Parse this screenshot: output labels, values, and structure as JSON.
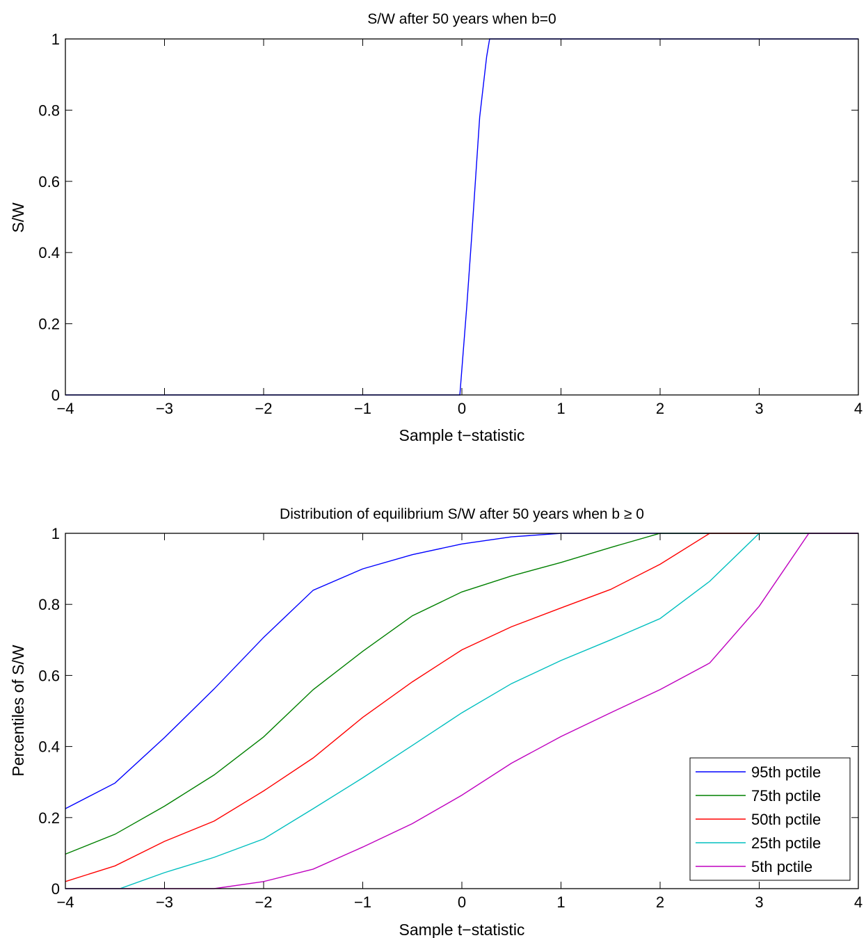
{
  "chart_data": [
    {
      "type": "line",
      "title": "S/W after 50 years when b=0",
      "xlabel": "Sample t−statistic",
      "ylabel": "S/W",
      "xlim": [
        -4,
        4
      ],
      "ylim": [
        0,
        1
      ],
      "xticks": [
        -4,
        -3,
        -2,
        -1,
        0,
        1,
        2,
        3,
        4
      ],
      "xtick_labels": [
        "−4",
        "−3",
        "−2",
        "−1",
        "0",
        "1",
        "2",
        "3",
        "4"
      ],
      "yticks": [
        0,
        0.2,
        0.4,
        0.6,
        0.8,
        1
      ],
      "ytick_labels": [
        "0",
        "0.2",
        "0.4",
        "0.6",
        "0.8",
        "1"
      ],
      "grid": false,
      "legend": null,
      "series": [
        {
          "color": "#0000ff",
          "x": [
            -4,
            -0.02,
            0.05,
            0.1,
            0.18,
            0.25,
            0.28,
            4
          ],
          "y": [
            0,
            0,
            0.25,
            0.45,
            0.78,
            0.95,
            1,
            1
          ]
        }
      ]
    },
    {
      "type": "line",
      "title": "Distribution of equilibrium S/W after 50 years when b ≥ 0",
      "xlabel": "Sample t−statistic",
      "ylabel": "Percentiles of S/W",
      "xlim": [
        -4,
        4
      ],
      "ylim": [
        0,
        1
      ],
      "xticks": [
        -4,
        -3,
        -2,
        -1,
        0,
        1,
        2,
        3,
        4
      ],
      "xtick_labels": [
        "−4",
        "−3",
        "−2",
        "−1",
        "0",
        "1",
        "2",
        "3",
        "4"
      ],
      "yticks": [
        0,
        0.2,
        0.4,
        0.6,
        0.8,
        1
      ],
      "ytick_labels": [
        "0",
        "0.2",
        "0.4",
        "0.6",
        "0.8",
        "1"
      ],
      "grid": false,
      "legend": "bottom-right",
      "series": [
        {
          "name": "95th pctile",
          "color": "#0000ff",
          "x": [
            -4,
            -3.5,
            -3,
            -2.5,
            -2,
            -1.5,
            -1,
            -0.5,
            0,
            0.5,
            1,
            1.5,
            2,
            2.5,
            3,
            3.5,
            4
          ],
          "y": [
            0.225,
            0.297,
            0.425,
            0.562,
            0.707,
            0.84,
            0.9,
            0.94,
            0.97,
            0.99,
            1,
            1,
            1,
            1,
            1,
            1,
            1
          ]
        },
        {
          "name": "75th pctile",
          "color": "#008000",
          "x": [
            -4,
            -3.5,
            -3,
            -2.5,
            -2,
            -1.5,
            -1,
            -0.5,
            0,
            0.5,
            1,
            1.5,
            2,
            2.5,
            3,
            3.5,
            4
          ],
          "y": [
            0.097,
            0.153,
            0.232,
            0.32,
            0.427,
            0.56,
            0.668,
            0.768,
            0.835,
            0.88,
            0.918,
            0.96,
            1,
            1,
            1,
            1,
            1
          ]
        },
        {
          "name": "50th pctile",
          "color": "#ff0000",
          "x": [
            -4,
            -3.5,
            -3,
            -2.5,
            -2,
            -1.5,
            -1,
            -0.5,
            0,
            0.5,
            1,
            1.5,
            2,
            2.5,
            3,
            3.5,
            4
          ],
          "y": [
            0.02,
            0.064,
            0.133,
            0.19,
            0.275,
            0.368,
            0.482,
            0.582,
            0.672,
            0.737,
            0.79,
            0.842,
            0.913,
            1,
            1,
            1,
            1
          ]
        },
        {
          "name": "25th pctile",
          "color": "#00bfbf",
          "x": [
            -4,
            -3.5,
            -3.45,
            -3,
            -2.5,
            -2,
            -1.5,
            -1,
            -0.5,
            0,
            0.5,
            1,
            1.5,
            2,
            2.5,
            3,
            3.5,
            4
          ],
          "y": [
            0,
            0,
            0,
            0.045,
            0.088,
            0.14,
            0.225,
            0.312,
            0.403,
            0.495,
            0.577,
            0.642,
            0.7,
            0.76,
            0.865,
            1,
            1,
            1
          ]
        },
        {
          "name": "5th pctile",
          "color": "#bf00bf",
          "x": [
            -4,
            -3.5,
            -3,
            -2.5,
            -2,
            -1.5,
            -1,
            -0.5,
            0,
            0.5,
            1,
            1.5,
            2,
            2.5,
            3,
            3.5,
            4
          ],
          "y": [
            0,
            0,
            0,
            0,
            0.02,
            0.055,
            0.117,
            0.183,
            0.263,
            0.353,
            0.428,
            0.495,
            0.56,
            0.635,
            0.795,
            1,
            1
          ]
        }
      ]
    }
  ]
}
